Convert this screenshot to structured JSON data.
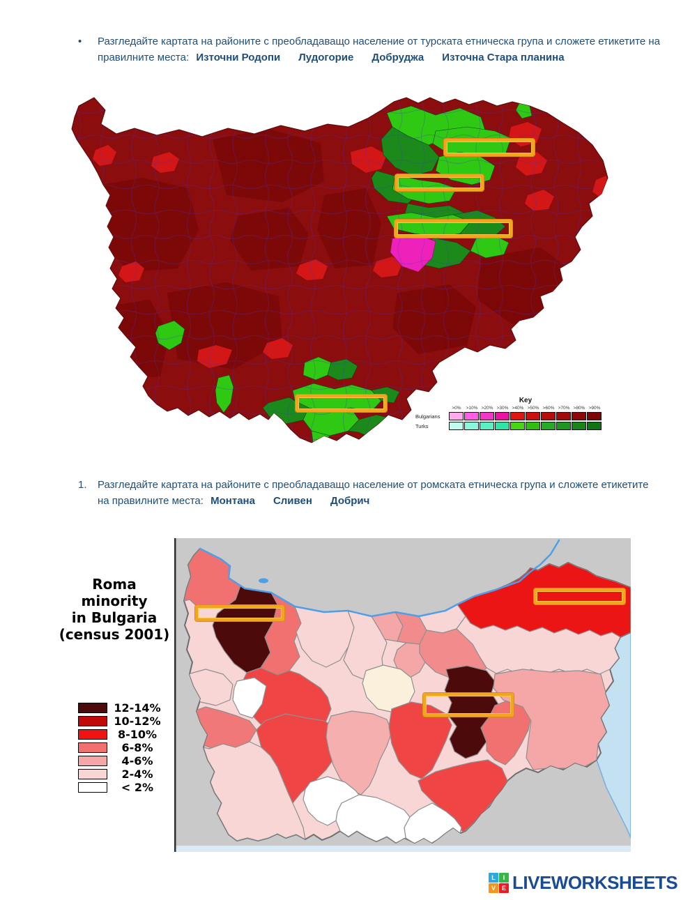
{
  "page": {
    "background": "#FFFFFF"
  },
  "task_turkish": {
    "marker": "•",
    "instruction": "Разгледайте картата на районите с преобладаващо население от турската етническа група и сложете етикетите на правилните места:",
    "labels": [
      "Източни Родопи",
      "Лудогорие",
      "Добруджа",
      "Източна Стара планина"
    ]
  },
  "task_roma": {
    "marker": "1.",
    "instruction": "Разгледайте картата на районите с преобладаващо население от ромската етническа група и сложете етикетите на правилните места:",
    "labels": [
      "Монтана",
      "Сливен",
      "Добрич"
    ]
  },
  "turkish_map": {
    "key": {
      "title": "Key",
      "thresholds": [
        ">0%",
        ">10%",
        ">20%",
        ">30%",
        ">40%",
        ">50%",
        ">60%",
        ">70%",
        ">80%",
        ">90%"
      ],
      "bulgarians": {
        "label": "Bulgarians",
        "colors": [
          "#FFAAEC",
          "#FF5FE4",
          "#F436C6",
          "#EC15A1",
          "#E11414",
          "#CD0F0F",
          "#B60C0C",
          "#A30A0A",
          "#8F0808",
          "#7C0606"
        ]
      },
      "turks": {
        "label": "Turks",
        "colors": [
          "#BDFCEC",
          "#8AF7DC",
          "#5BEFC4",
          "#2FE5A5",
          "#47D613",
          "#2FBD0F",
          "#27AA27",
          "#1F961F",
          "#198519",
          "#107410"
        ]
      }
    },
    "drop_zone_count": 4
  },
  "roma_map": {
    "title_lines": [
      "Roma minority",
      "in Bulgaria",
      "(census 2001)"
    ],
    "legend": [
      {
        "range": "12-14%",
        "color": "#4D0A0A"
      },
      {
        "range": "10-12%",
        "color": "#C00A0A"
      },
      {
        "range": "8-10%",
        "color": "#EE1414"
      },
      {
        "range": "6-8%",
        "color": "#F17070"
      },
      {
        "range": "4-6%",
        "color": "#F5A6A6"
      },
      {
        "range": "2-4%",
        "color": "#F9D6D6"
      },
      {
        "range": "< 2%",
        "color": "#FFFFFF"
      }
    ],
    "drop_zone_count": 3
  },
  "logo": {
    "tiles": [
      {
        "letter": "L",
        "color": "#29ABE2"
      },
      {
        "letter": "I",
        "color": "#39B54A"
      },
      {
        "letter": "V",
        "color": "#F7941D"
      },
      {
        "letter": "E",
        "color": "#ED1C24"
      }
    ],
    "wordmark": "LIVEWORKSHEETS"
  },
  "colors": {
    "instruction_text": "#1F4E79",
    "drop_zone_border": "#F2A51E",
    "map1_dominant_red": "#8B0D0D",
    "map1_bright_red": "#D31616",
    "map1_turk_green": "#2FC913",
    "map1_turk_dark_green": "#1B8A1B",
    "map1_magenta": "#EE22BB",
    "map1_municipal_border": "#4A35C6",
    "map2_background": "#C9C9C9",
    "map2_sea": "#C4E1F2",
    "map2_river": "#4D9FE8",
    "map2_province_border": "#8F8F8F"
  }
}
